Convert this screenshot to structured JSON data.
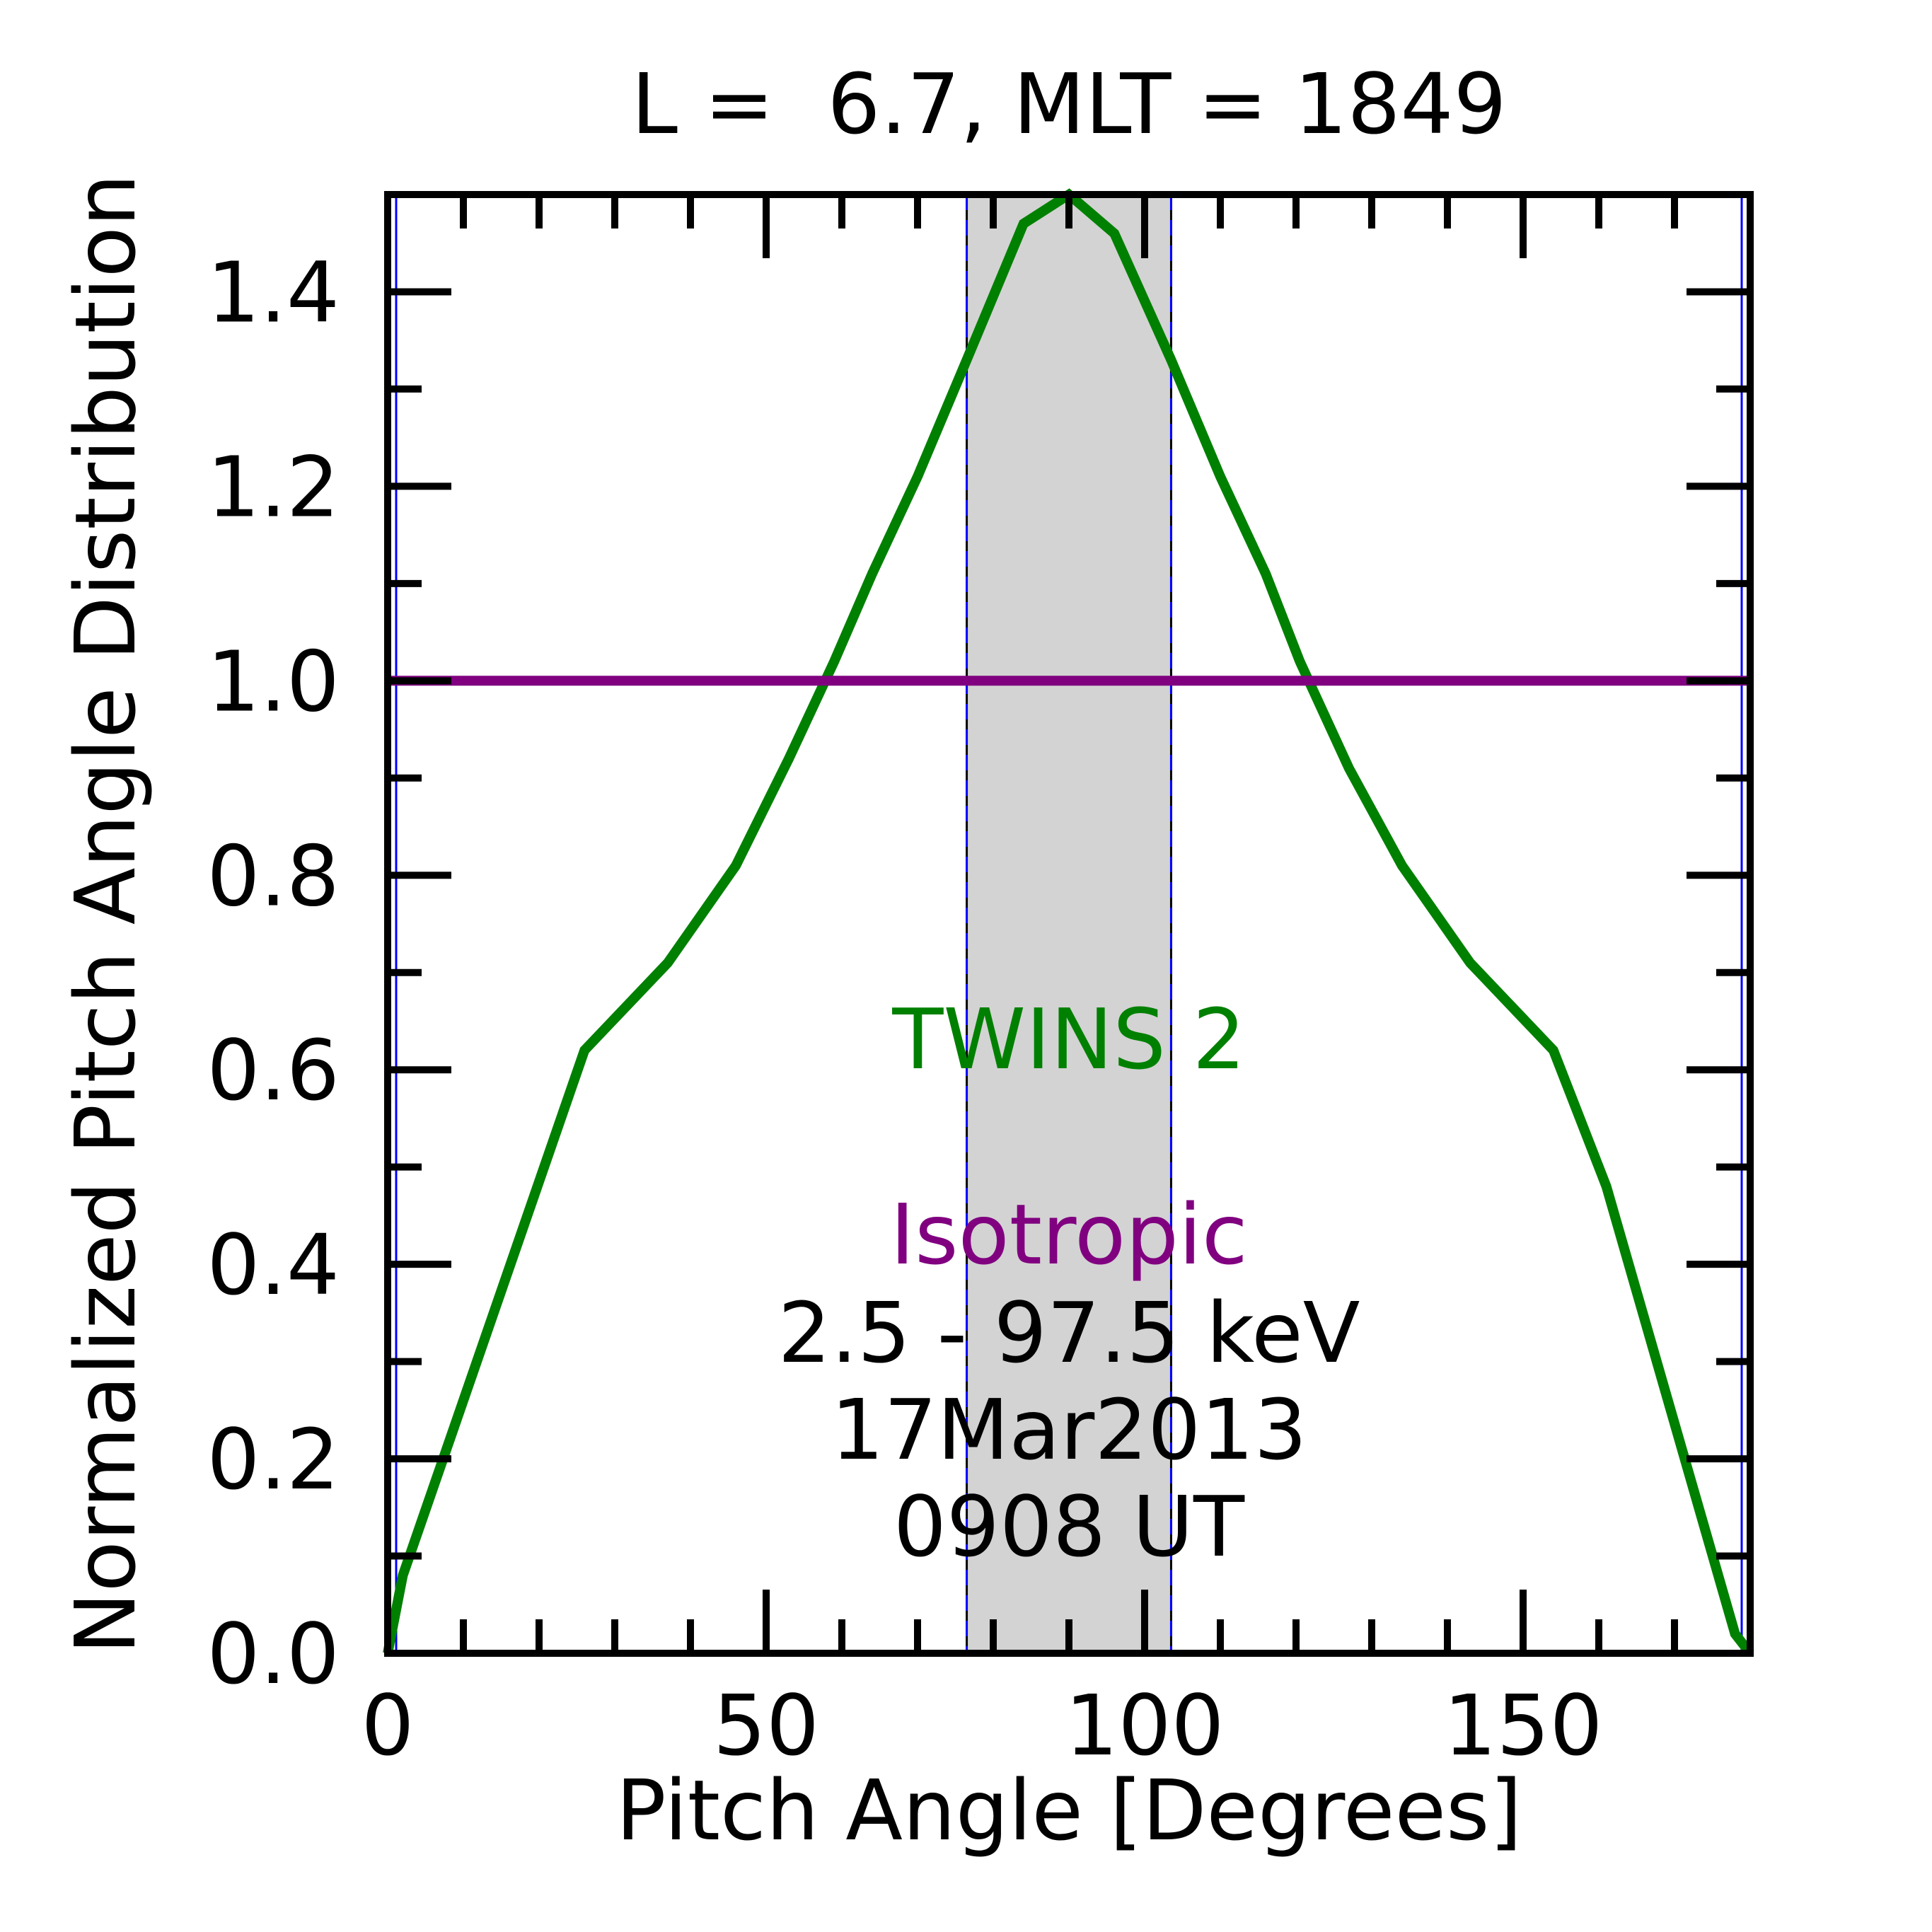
{
  "chart_data": {
    "type": "line",
    "title": "L =  6.7, MLT = 1849",
    "xlabel": "Pitch Angle [Degrees]",
    "ylabel": "Normalized Pitch Angle Distribution",
    "xlim": [
      0,
      180
    ],
    "ylim": [
      0,
      1.5
    ],
    "xticks": [
      0,
      50,
      100,
      150
    ],
    "xtick_labels": [
      "0",
      "50",
      "100",
      "150"
    ],
    "yticks": [
      0.0,
      0.2,
      0.4,
      0.6,
      0.8,
      1.0,
      1.2,
      1.4
    ],
    "ytick_labels": [
      "0.0",
      "0.2",
      "0.4",
      "0.6",
      "0.8",
      "1.0",
      "1.2",
      "1.4"
    ],
    "grid": false,
    "shaded_band": {
      "x": [
        76.5,
        103.5
      ],
      "color": "#d3d3d3"
    },
    "series": [
      {
        "name": "TWINS 2",
        "color": "#008000",
        "x": [
          0,
          2,
          26,
          37,
          46,
          53,
          59,
          64,
          70,
          76.5,
          84,
          90,
          96,
          103.5,
          110,
          116,
          120.5,
          127,
          134,
          143,
          154,
          161,
          178,
          180
        ],
        "y": [
          0.0,
          0.08,
          0.62,
          0.71,
          0.81,
          0.92,
          1.02,
          1.11,
          1.21,
          1.33,
          1.47,
          1.5,
          1.46,
          1.33,
          1.21,
          1.11,
          1.02,
          0.91,
          0.81,
          0.71,
          0.62,
          0.48,
          0.02,
          0.0
        ]
      },
      {
        "name": "Isotropic",
        "color": "#800080",
        "x": [
          0,
          180
        ],
        "y": [
          1.0,
          1.0
        ]
      }
    ],
    "annotations": [
      {
        "text": "2.5 - 97.5 keV",
        "color": "#000000"
      },
      {
        "text": "17Mar2013",
        "color": "#000000"
      },
      {
        "text": "0908 UT",
        "color": "#000000"
      }
    ]
  }
}
